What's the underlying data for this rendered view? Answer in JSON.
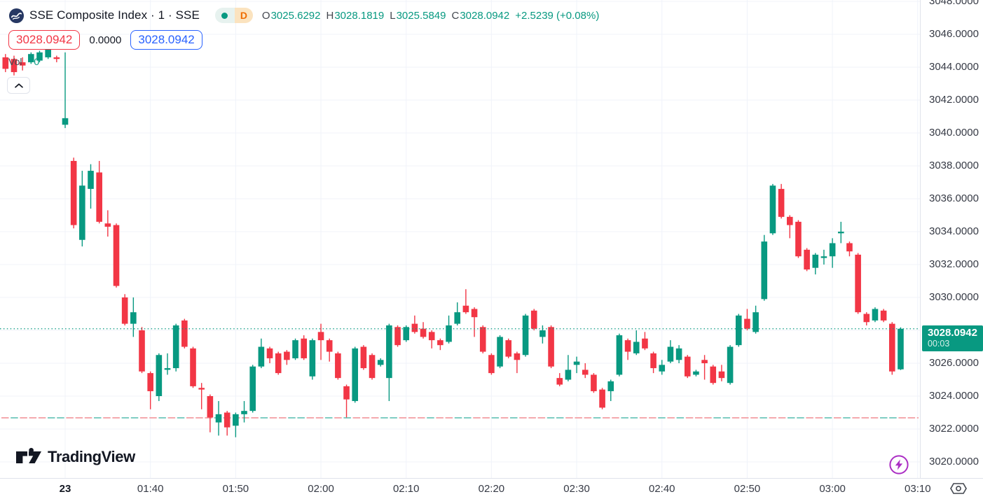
{
  "colors": {
    "up": "#089981",
    "down": "#f23645",
    "buy_blue": "#2962ff",
    "sell_red": "#f23645",
    "text_dark": "#131722",
    "axis_text": "#363a45",
    "grid": "#f0f3fa",
    "last_price_badge_bg": "#089981",
    "delayed_badge_orange": "#ef6c00",
    "boost_purple": "#ab2ec4",
    "low_line_pink": "#f4a9ad",
    "low_line_teal": "#7fcdc3"
  },
  "icons": {
    "symbol_logo": "sse-circle-logo",
    "market_status": "teal-dot",
    "collapse": "chevron-up",
    "brand": "tradingview-mark",
    "boost": "lightning-bolt",
    "axis_settings": "hexagon-nut"
  },
  "header": {
    "symbol_title": "SSE Composite Index · 1 · SSE",
    "interval_badge": "D",
    "ohlc": {
      "open_label": "O",
      "open": "3025.6292",
      "high_label": "H",
      "high": "3028.1819",
      "low_label": "L",
      "low": "3025.5849",
      "close_label": "C",
      "close": "3028.0942",
      "change": "+2.5239 (+0.08%)"
    },
    "sell_price": "3028.0942",
    "spread": "0.0000",
    "buy_price": "3028.0942",
    "volume_label": "Vol",
    "volume_value": "0"
  },
  "footer": {
    "brand": "TradingView"
  },
  "price_axis": {
    "tick_labels": [
      "3048.0000",
      "3046.0000",
      "3044.0000",
      "3042.0000",
      "3040.0000",
      "3038.0000",
      "3036.0000",
      "3034.0000",
      "3032.0000",
      "3030.0000",
      "3026.0000",
      "3024.0000",
      "3022.0000",
      "3020.0000"
    ],
    "last_price_label": "3028.0942",
    "countdown": "00:03"
  },
  "time_axis": {
    "ticks": [
      {
        "label": "23",
        "minute": 0,
        "bold": true
      },
      {
        "label": "01:40",
        "minute": 10
      },
      {
        "label": "01:50",
        "minute": 20
      },
      {
        "label": "02:00",
        "minute": 30
      },
      {
        "label": "02:10",
        "minute": 40
      },
      {
        "label": "02:20",
        "minute": 50
      },
      {
        "label": "02:30",
        "minute": 60
      },
      {
        "label": "02:40",
        "minute": 70
      },
      {
        "label": "02:50",
        "minute": 80
      },
      {
        "label": "03:00",
        "minute": 90
      },
      {
        "label": "03:10",
        "minute": 100
      }
    ]
  },
  "chart_data": {
    "type": "candlestick",
    "symbol": "SSE Composite Index",
    "exchange": "SSE",
    "interval": "1",
    "visible_price_range": [
      3019.2,
      3048.2
    ],
    "axis_price_step": 2,
    "grid": true,
    "last_price": 3028.0942,
    "session_low_line_price": 3022.68,
    "pre_session_candles": [
      [
        3044.6,
        3044.8,
        3043.7,
        3043.9
      ],
      [
        3044.5,
        3044.7,
        3043.5,
        3043.7
      ],
      [
        3044.3,
        3044.6,
        3043.8,
        3044.1
      ],
      [
        3044.3,
        3044.9,
        3044.2,
        3044.8
      ],
      [
        3044.4,
        3045.0,
        3044.3,
        3044.9
      ],
      [
        3044.6,
        3045.2,
        3044.5,
        3045.1
      ],
      [
        3044.6,
        3044.7,
        3044.3,
        3044.5
      ]
    ],
    "candles": [
      [
        "01:30",
        3040.5,
        3044.9,
        3040.3,
        3040.9
      ],
      [
        "01:31",
        3038.3,
        3038.5,
        3034.2,
        3034.4
      ],
      [
        "01:32",
        3033.5,
        3037.7,
        3033.1,
        3036.8
      ],
      [
        "01:33",
        3036.6,
        3038.1,
        3035.4,
        3037.7
      ],
      [
        "01:34",
        3037.6,
        3038.3,
        3034.5,
        3034.6
      ],
      [
        "01:35",
        3034.5,
        3035.3,
        3033.7,
        3034.3
      ],
      [
        "01:36",
        3034.4,
        3034.5,
        3030.6,
        3030.7
      ],
      [
        "01:37",
        3030.0,
        3030.2,
        3028.3,
        3028.4
      ],
      [
        "01:38",
        3028.4,
        3030.0,
        3027.6,
        3029.1
      ],
      [
        "01:39",
        3028.0,
        3028.2,
        3025.4,
        3025.5
      ],
      [
        "01:40",
        3025.4,
        3025.5,
        3023.2,
        3024.3
      ],
      [
        "01:41",
        3024.0,
        3026.6,
        3023.7,
        3026.5
      ],
      [
        "01:42",
        3025.6,
        3026.6,
        3025.3,
        3025.7
      ],
      [
        "01:43",
        3025.7,
        3028.4,
        3025.5,
        3028.3
      ],
      [
        "01:44",
        3028.6,
        3028.7,
        3026.9,
        3027.0
      ],
      [
        "01:45",
        3026.9,
        3027.0,
        3024.5,
        3024.6
      ],
      [
        "01:46",
        3024.5,
        3024.8,
        3023.2,
        3024.4
      ],
      [
        "01:47",
        3024.0,
        3024.1,
        3021.8,
        3022.7
      ],
      [
        "01:48",
        3022.4,
        3023.7,
        3021.6,
        3022.9
      ],
      [
        "01:49",
        3023.0,
        3023.1,
        3021.6,
        3022.1
      ],
      [
        "01:50",
        3022.2,
        3023.0,
        3021.5,
        3022.9
      ],
      [
        "01:51",
        3022.9,
        3023.7,
        3022.4,
        3023.1
      ],
      [
        "01:52",
        3023.1,
        3025.9,
        3023.0,
        3025.8
      ],
      [
        "01:53",
        3025.8,
        3027.5,
        3025.7,
        3027.0
      ],
      [
        "01:54",
        3026.9,
        3027.0,
        3026.0,
        3026.3
      ],
      [
        "01:55",
        3026.6,
        3026.7,
        3025.3,
        3025.4
      ],
      [
        "01:56",
        3026.7,
        3026.8,
        3025.9,
        3026.2
      ],
      [
        "01:57",
        3026.3,
        3027.5,
        3026.2,
        3027.4
      ],
      [
        "01:58",
        3027.5,
        3027.7,
        3026.2,
        3026.3
      ],
      [
        "01:59",
        3025.2,
        3027.5,
        3025.0,
        3027.4
      ],
      [
        "02:00",
        3027.9,
        3028.4,
        3026.2,
        3027.4
      ],
      [
        "02:01",
        3027.4,
        3027.5,
        3026.1,
        3026.7
      ],
      [
        "02:02",
        3026.6,
        3026.7,
        3025.0,
        3025.1
      ],
      [
        "02:03",
        3024.6,
        3024.7,
        3022.7,
        3023.8
      ],
      [
        "02:04",
        3023.7,
        3027.0,
        3023.6,
        3026.9
      ],
      [
        "02:05",
        3027.0,
        3027.1,
        3025.6,
        3025.7
      ],
      [
        "02:06",
        3026.5,
        3026.6,
        3025.0,
        3025.1
      ],
      [
        "02:07",
        3025.9,
        3026.3,
        3025.8,
        3026.2
      ],
      [
        "02:08",
        3025.1,
        3028.4,
        3023.7,
        3028.3
      ],
      [
        "02:09",
        3028.2,
        3028.3,
        3027.0,
        3027.1
      ],
      [
        "02:10",
        3027.4,
        3028.3,
        3027.3,
        3028.2
      ],
      [
        "02:11",
        3028.4,
        3028.9,
        3027.8,
        3027.9
      ],
      [
        "02:12",
        3028.1,
        3028.5,
        3027.5,
        3027.6
      ],
      [
        "02:13",
        3027.9,
        3028.0,
        3026.9,
        3027.4
      ],
      [
        "02:14",
        3027.4,
        3027.5,
        3026.8,
        3027.1
      ],
      [
        "02:15",
        3027.3,
        3028.9,
        3027.2,
        3028.3
      ],
      [
        "02:16",
        3028.4,
        3029.7,
        3028.3,
        3029.1
      ],
      [
        "02:17",
        3029.5,
        3030.5,
        3029.0,
        3029.1
      ],
      [
        "02:18",
        3029.3,
        3029.4,
        3027.6,
        3028.8
      ],
      [
        "02:19",
        3028.2,
        3028.3,
        3026.6,
        3026.7
      ],
      [
        "02:20",
        3026.5,
        3026.6,
        3025.3,
        3025.4
      ],
      [
        "02:21",
        3025.8,
        3027.7,
        3025.7,
        3027.6
      ],
      [
        "02:22",
        3027.4,
        3027.5,
        3026.3,
        3026.4
      ],
      [
        "02:23",
        3026.6,
        3026.7,
        3025.4,
        3026.2
      ],
      [
        "02:24",
        3026.5,
        3029.0,
        3026.4,
        3028.9
      ],
      [
        "02:25",
        3029.2,
        3029.3,
        3028.0,
        3028.1
      ],
      [
        "02:26",
        3027.6,
        3028.3,
        3027.2,
        3028.0
      ],
      [
        "02:27",
        3028.2,
        3028.3,
        3025.7,
        3025.8
      ],
      [
        "02:28",
        3025.1,
        3025.4,
        3024.6,
        3024.7
      ],
      [
        "02:29",
        3025.0,
        3026.5,
        3024.9,
        3025.6
      ],
      [
        "02:30",
        3025.9,
        3026.4,
        3025.4,
        3026.1
      ],
      [
        "02:31",
        3025.6,
        3026.0,
        3025.1,
        3025.3
      ],
      [
        "02:32",
        3025.3,
        3025.4,
        3024.2,
        3024.3
      ],
      [
        "02:33",
        3024.4,
        3024.5,
        3023.2,
        3023.3
      ],
      [
        "02:34",
        3024.3,
        3025.0,
        3023.7,
        3024.9
      ],
      [
        "02:35",
        3025.3,
        3027.8,
        3025.2,
        3027.7
      ],
      [
        "02:36",
        3027.4,
        3027.5,
        3026.2,
        3026.7
      ],
      [
        "02:37",
        3026.6,
        3028.0,
        3026.5,
        3027.3
      ],
      [
        "02:38",
        3027.5,
        3027.9,
        3026.8,
        3026.9
      ],
      [
        "02:39",
        3026.6,
        3026.7,
        3025.4,
        3025.7
      ],
      [
        "02:40",
        3025.5,
        3026.2,
        3025.3,
        3025.9
      ],
      [
        "02:41",
        3026.1,
        3027.4,
        3026.0,
        3027.0
      ],
      [
        "02:42",
        3026.2,
        3027.1,
        3026.0,
        3026.9
      ],
      [
        "02:43",
        3026.4,
        3026.5,
        3025.1,
        3025.2
      ],
      [
        "02:44",
        3025.3,
        3025.6,
        3025.2,
        3025.5
      ],
      [
        "02:45",
        3026.2,
        3026.5,
        3025.0,
        3026.0
      ],
      [
        "02:46",
        3025.8,
        3025.9,
        3024.7,
        3024.8
      ],
      [
        "02:47",
        3025.5,
        3025.9,
        3024.9,
        3025.1
      ],
      [
        "02:48",
        3024.8,
        3027.1,
        3024.7,
        3027.0
      ],
      [
        "02:49",
        3027.1,
        3029.0,
        3027.0,
        3028.9
      ],
      [
        "02:50",
        3028.7,
        3029.3,
        3028.0,
        3028.1
      ],
      [
        "02:51",
        3027.9,
        3029.5,
        3027.8,
        3029.1
      ],
      [
        "02:52",
        3029.9,
        3033.8,
        3029.8,
        3033.4
      ],
      [
        "02:53",
        3033.9,
        3036.9,
        3033.8,
        3036.8
      ],
      [
        "02:54",
        3036.6,
        3036.9,
        3034.8,
        3034.9
      ],
      [
        "02:55",
        3034.9,
        3035.0,
        3033.6,
        3034.4
      ],
      [
        "02:56",
        3034.6,
        3034.7,
        3032.4,
        3032.5
      ],
      [
        "02:57",
        3032.9,
        3033.0,
        3031.6,
        3031.7
      ],
      [
        "02:58",
        3031.8,
        3032.7,
        3031.4,
        3032.6
      ],
      [
        "02:59",
        3032.4,
        3032.9,
        3032.0,
        3032.5
      ],
      [
        "03:00",
        3032.5,
        3033.6,
        3031.8,
        3033.3
      ],
      [
        "03:01",
        3033.9,
        3034.6,
        3033.3,
        3034.0
      ],
      [
        "03:02",
        3033.3,
        3033.4,
        3032.5,
        3032.8
      ],
      [
        "03:03",
        3032.6,
        3032.7,
        3029.0,
        3029.1
      ],
      [
        "03:04",
        3029.0,
        3029.1,
        3028.3,
        3028.5
      ],
      [
        "03:05",
        3028.6,
        3029.4,
        3028.5,
        3029.3
      ],
      [
        "03:06",
        3029.2,
        3029.3,
        3028.5,
        3028.6
      ],
      [
        "03:07",
        3028.4,
        3028.5,
        3025.3,
        3025.5
      ],
      [
        "03:08",
        3025.6292,
        3028.1819,
        3025.5849,
        3028.0942
      ]
    ]
  }
}
